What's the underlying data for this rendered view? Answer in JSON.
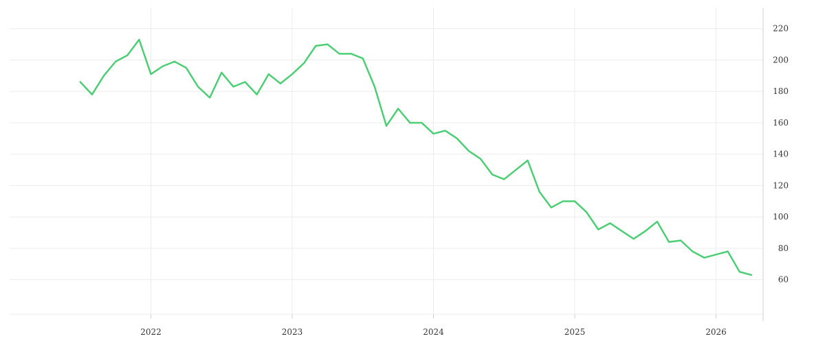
{
  "chart_data": {
    "type": "line",
    "title": "",
    "xlabel": "",
    "ylabel": "",
    "x": [
      "2021-07",
      "2021-08",
      "2021-09",
      "2021-10",
      "2021-11",
      "2021-12",
      "2022-01",
      "2022-02",
      "2022-03",
      "2022-04",
      "2022-05",
      "2022-06",
      "2022-07",
      "2022-08",
      "2022-09",
      "2022-10",
      "2022-11",
      "2022-12",
      "2023-01",
      "2023-02",
      "2023-03",
      "2023-04",
      "2023-05",
      "2023-06",
      "2023-07",
      "2023-08",
      "2023-09",
      "2023-10",
      "2023-11",
      "2023-12",
      "2024-01",
      "2024-02",
      "2024-03",
      "2024-04",
      "2024-05",
      "2024-06",
      "2024-07",
      "2024-08",
      "2024-09",
      "2024-10",
      "2024-11",
      "2024-12",
      "2025-01",
      "2025-02",
      "2025-03",
      "2025-04",
      "2025-05",
      "2025-06",
      "2025-07",
      "2025-08",
      "2025-09",
      "2025-10",
      "2025-11",
      "2025-12",
      "2026-01",
      "2026-02",
      "2026-03",
      "2026-04"
    ],
    "series": [
      {
        "color": "#4cce74",
        "values": [
          186,
          178,
          190,
          199,
          203,
          213,
          191,
          196,
          199,
          195,
          183,
          176,
          192,
          183,
          186,
          178,
          191,
          185,
          191,
          198,
          209,
          210,
          204,
          204,
          201,
          183,
          158,
          169,
          160,
          160,
          153,
          155,
          150,
          142,
          137,
          127,
          124,
          130,
          136,
          116,
          106,
          110,
          110,
          103,
          92,
          96,
          91,
          86,
          91,
          97,
          84,
          85,
          78,
          74,
          76,
          78,
          65,
          63
        ]
      }
    ],
    "x_ticks": [
      "2022",
      "2023",
      "2024",
      "2025",
      "2026"
    ],
    "y_ticks": [
      60,
      80,
      100,
      120,
      140,
      160,
      180,
      200,
      220
    ],
    "ylim": [
      38,
      233
    ],
    "xlim": [
      "2021-01",
      "2026-05"
    ],
    "y_axis_side": "right",
    "grid": true,
    "legend": "none"
  },
  "colors": {
    "line": "#4cce74",
    "grid": "#ececec",
    "axis": "#cfcfcf",
    "text": "#333333"
  }
}
